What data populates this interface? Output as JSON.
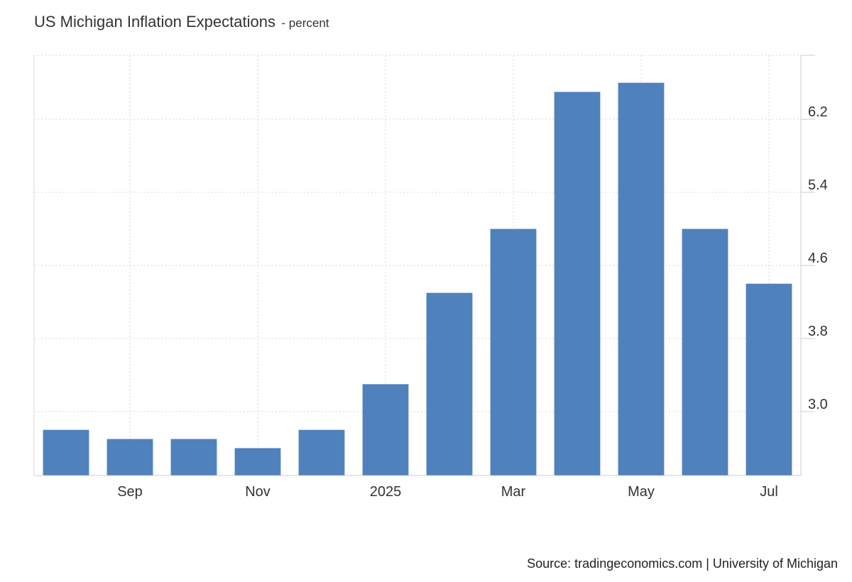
{
  "header": {
    "title": "US Michigan Inflation Expectations",
    "subtitle": "- percent"
  },
  "footer": {
    "source": "Source: tradingeconomics.com | University of Michigan"
  },
  "colors": {
    "bar": "#4f81bd",
    "grid": "#d9d9d9",
    "axis": "#cccccc",
    "text": "#333333"
  },
  "chart_data": {
    "type": "bar",
    "title": "US Michigan Inflation Expectations",
    "subtitle": "- percent",
    "categories": [
      "2024-08",
      "2024-09",
      "2024-10",
      "2024-11",
      "2024-12",
      "2025-01",
      "2025-02",
      "2025-03",
      "2025-04",
      "2025-05",
      "2025-06",
      "2025-07"
    ],
    "values": [
      2.8,
      2.7,
      2.7,
      2.6,
      2.8,
      3.3,
      4.3,
      5.0,
      6.5,
      6.6,
      5.0,
      4.4
    ],
    "x_tick_labels": [
      {
        "category": "2024-09",
        "label": "Sep"
      },
      {
        "category": "2024-11",
        "label": "Nov"
      },
      {
        "category": "2025-01",
        "label": "2025"
      },
      {
        "category": "2025-03",
        "label": "Mar"
      },
      {
        "category": "2025-05",
        "label": "May"
      },
      {
        "category": "2025-07",
        "label": "Jul"
      }
    ],
    "y_ticks": [
      3.0,
      3.8,
      4.6,
      5.4,
      6.2
    ],
    "y_tick_labels": [
      "3.0",
      "3.8",
      "4.6",
      "5.4",
      "6.2"
    ],
    "ylim": [
      2.3,
      6.9
    ],
    "y_axis_position": "right",
    "grid": true,
    "xlabel": "",
    "ylabel": ""
  }
}
